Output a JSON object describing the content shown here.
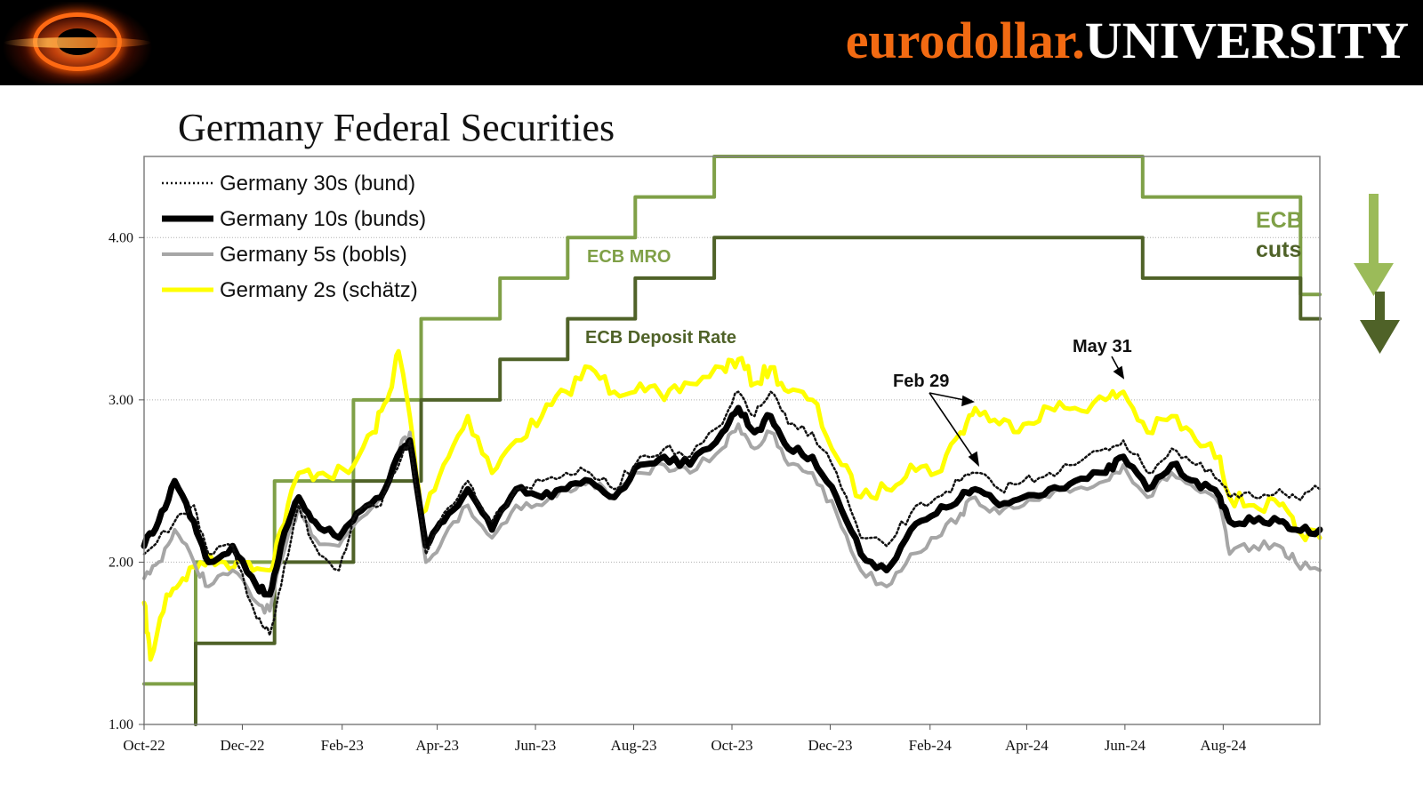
{
  "header": {
    "brand_part1": "eurodollar.",
    "brand_part2": "UNIVERSITY",
    "brand_color_orange": "#f26a12",
    "logo_icon": "black-hole-logo-icon"
  },
  "chart_data": {
    "type": "line",
    "title": "Germany Federal Securities",
    "xlabel": "",
    "ylabel": "",
    "ylim": [
      1.0,
      4.5
    ],
    "yticks": [
      "1.00",
      "2.00",
      "3.00",
      "4.00"
    ],
    "xticks": [
      "Oct-22",
      "Dec-22",
      "Feb-23",
      "Apr-23",
      "Jun-23",
      "Aug-23",
      "Oct-23",
      "Dec-23",
      "Feb-24",
      "Apr-24",
      "Jun-24",
      "Aug-24"
    ],
    "x_start": "2022-10-01",
    "x_end": "2024-09-30",
    "grid": "horizontal dotted",
    "legend_position": "top-left",
    "series": [
      {
        "name": "Germany 30s (bund)",
        "color": "#111111",
        "style": "dotted",
        "points": [
          [
            "2022-10-01",
            2.05
          ],
          [
            "2022-10-20",
            2.25
          ],
          [
            "2022-11-01",
            2.35
          ],
          [
            "2022-11-10",
            2.05
          ],
          [
            "2022-11-25",
            2.1
          ],
          [
            "2022-12-10",
            1.65
          ],
          [
            "2022-12-18",
            1.55
          ],
          [
            "2022-12-25",
            1.85
          ],
          [
            "2023-01-05",
            2.35
          ],
          [
            "2023-01-15",
            2.1
          ],
          [
            "2023-01-30",
            1.95
          ],
          [
            "2023-02-10",
            2.3
          ],
          [
            "2023-02-25",
            2.35
          ],
          [
            "2023-03-10",
            2.65
          ],
          [
            "2023-03-15",
            2.75
          ],
          [
            "2023-03-25",
            2.05
          ],
          [
            "2023-04-05",
            2.3
          ],
          [
            "2023-04-20",
            2.5
          ],
          [
            "2023-05-05",
            2.25
          ],
          [
            "2023-05-20",
            2.45
          ],
          [
            "2023-06-05",
            2.5
          ],
          [
            "2023-06-20",
            2.55
          ],
          [
            "2023-07-05",
            2.55
          ],
          [
            "2023-07-20",
            2.45
          ],
          [
            "2023-08-05",
            2.65
          ],
          [
            "2023-08-20",
            2.7
          ],
          [
            "2023-09-05",
            2.65
          ],
          [
            "2023-09-25",
            2.85
          ],
          [
            "2023-10-05",
            3.05
          ],
          [
            "2023-10-15",
            2.9
          ],
          [
            "2023-10-25",
            3.05
          ],
          [
            "2023-11-05",
            2.85
          ],
          [
            "2023-11-20",
            2.8
          ],
          [
            "2023-12-05",
            2.55
          ],
          [
            "2023-12-20",
            2.15
          ],
          [
            "2024-01-05",
            2.1
          ],
          [
            "2024-01-20",
            2.3
          ],
          [
            "2024-02-05",
            2.4
          ],
          [
            "2024-02-20",
            2.5
          ],
          [
            "2024-02-29",
            2.55
          ],
          [
            "2024-03-15",
            2.45
          ],
          [
            "2024-03-30",
            2.5
          ],
          [
            "2024-04-15",
            2.55
          ],
          [
            "2024-05-01",
            2.6
          ],
          [
            "2024-05-20",
            2.7
          ],
          [
            "2024-05-31",
            2.75
          ],
          [
            "2024-06-15",
            2.55
          ],
          [
            "2024-06-30",
            2.7
          ],
          [
            "2024-07-15",
            2.6
          ],
          [
            "2024-07-30",
            2.5
          ],
          [
            "2024-08-05",
            2.4
          ],
          [
            "2024-08-20",
            2.4
          ],
          [
            "2024-09-05",
            2.45
          ],
          [
            "2024-09-15",
            2.4
          ],
          [
            "2024-09-30",
            2.45
          ]
        ]
      },
      {
        "name": "Germany 10s (bunds)",
        "color": "#000000",
        "style": "solid-thick",
        "points": [
          [
            "2022-10-01",
            2.1
          ],
          [
            "2022-10-10",
            2.25
          ],
          [
            "2022-10-20",
            2.5
          ],
          [
            "2022-11-01",
            2.25
          ],
          [
            "2022-11-10",
            2.0
          ],
          [
            "2022-11-25",
            2.1
          ],
          [
            "2022-12-10",
            1.85
          ],
          [
            "2022-12-18",
            1.8
          ],
          [
            "2022-12-25",
            2.1
          ],
          [
            "2023-01-05",
            2.4
          ],
          [
            "2023-01-15",
            2.25
          ],
          [
            "2023-01-30",
            2.15
          ],
          [
            "2023-02-10",
            2.3
          ],
          [
            "2023-02-25",
            2.4
          ],
          [
            "2023-03-10",
            2.7
          ],
          [
            "2023-03-15",
            2.75
          ],
          [
            "2023-03-25",
            2.1
          ],
          [
            "2023-04-05",
            2.25
          ],
          [
            "2023-04-20",
            2.45
          ],
          [
            "2023-05-05",
            2.2
          ],
          [
            "2023-05-20",
            2.45
          ],
          [
            "2023-06-05",
            2.4
          ],
          [
            "2023-06-20",
            2.45
          ],
          [
            "2023-07-05",
            2.5
          ],
          [
            "2023-07-20",
            2.4
          ],
          [
            "2023-08-05",
            2.6
          ],
          [
            "2023-08-20",
            2.65
          ],
          [
            "2023-09-05",
            2.6
          ],
          [
            "2023-09-25",
            2.8
          ],
          [
            "2023-10-05",
            2.95
          ],
          [
            "2023-10-15",
            2.8
          ],
          [
            "2023-10-25",
            2.9
          ],
          [
            "2023-11-05",
            2.7
          ],
          [
            "2023-11-20",
            2.65
          ],
          [
            "2023-12-05",
            2.4
          ],
          [
            "2023-12-20",
            2.05
          ],
          [
            "2024-01-05",
            1.95
          ],
          [
            "2024-01-20",
            2.2
          ],
          [
            "2024-02-05",
            2.3
          ],
          [
            "2024-02-20",
            2.4
          ],
          [
            "2024-02-29",
            2.45
          ],
          [
            "2024-03-15",
            2.35
          ],
          [
            "2024-03-30",
            2.4
          ],
          [
            "2024-04-15",
            2.45
          ],
          [
            "2024-05-01",
            2.5
          ],
          [
            "2024-05-20",
            2.55
          ],
          [
            "2024-05-31",
            2.65
          ],
          [
            "2024-06-15",
            2.45
          ],
          [
            "2024-06-30",
            2.6
          ],
          [
            "2024-07-15",
            2.5
          ],
          [
            "2024-07-30",
            2.4
          ],
          [
            "2024-08-05",
            2.25
          ],
          [
            "2024-08-20",
            2.25
          ],
          [
            "2024-09-05",
            2.25
          ],
          [
            "2024-09-15",
            2.2
          ],
          [
            "2024-09-30",
            2.2
          ]
        ]
      },
      {
        "name": "Germany 5s (bobls)",
        "color": "#a6a6a6",
        "style": "solid",
        "points": [
          [
            "2022-10-01",
            1.9
          ],
          [
            "2022-10-10",
            2.0
          ],
          [
            "2022-10-20",
            2.2
          ],
          [
            "2022-11-01",
            2.0
          ],
          [
            "2022-11-10",
            1.85
          ],
          [
            "2022-11-25",
            1.95
          ],
          [
            "2022-12-10",
            1.75
          ],
          [
            "2022-12-18",
            1.7
          ],
          [
            "2022-12-25",
            2.0
          ],
          [
            "2023-01-05",
            2.35
          ],
          [
            "2023-01-15",
            2.15
          ],
          [
            "2023-01-30",
            2.1
          ],
          [
            "2023-02-10",
            2.25
          ],
          [
            "2023-02-25",
            2.4
          ],
          [
            "2023-03-10",
            2.75
          ],
          [
            "2023-03-15",
            2.8
          ],
          [
            "2023-03-25",
            2.0
          ],
          [
            "2023-04-05",
            2.15
          ],
          [
            "2023-04-20",
            2.35
          ],
          [
            "2023-05-05",
            2.15
          ],
          [
            "2023-05-20",
            2.35
          ],
          [
            "2023-06-05",
            2.35
          ],
          [
            "2023-06-20",
            2.45
          ],
          [
            "2023-07-05",
            2.5
          ],
          [
            "2023-07-20",
            2.4
          ],
          [
            "2023-08-05",
            2.55
          ],
          [
            "2023-08-20",
            2.6
          ],
          [
            "2023-09-05",
            2.55
          ],
          [
            "2023-09-25",
            2.7
          ],
          [
            "2023-10-05",
            2.85
          ],
          [
            "2023-10-15",
            2.7
          ],
          [
            "2023-10-25",
            2.8
          ],
          [
            "2023-11-05",
            2.6
          ],
          [
            "2023-11-20",
            2.55
          ],
          [
            "2023-12-05",
            2.3
          ],
          [
            "2023-12-20",
            1.95
          ],
          [
            "2024-01-05",
            1.85
          ],
          [
            "2024-01-20",
            2.05
          ],
          [
            "2024-02-05",
            2.15
          ],
          [
            "2024-02-20",
            2.3
          ],
          [
            "2024-02-29",
            2.4
          ],
          [
            "2024-03-15",
            2.3
          ],
          [
            "2024-03-30",
            2.35
          ],
          [
            "2024-04-15",
            2.4
          ],
          [
            "2024-05-01",
            2.45
          ],
          [
            "2024-05-20",
            2.5
          ],
          [
            "2024-05-31",
            2.6
          ],
          [
            "2024-06-15",
            2.4
          ],
          [
            "2024-06-30",
            2.55
          ],
          [
            "2024-07-15",
            2.45
          ],
          [
            "2024-07-30",
            2.35
          ],
          [
            "2024-08-05",
            2.05
          ],
          [
            "2024-08-20",
            2.1
          ],
          [
            "2024-09-05",
            2.1
          ],
          [
            "2024-09-15",
            2.0
          ],
          [
            "2024-09-30",
            1.95
          ]
        ]
      },
      {
        "name": "Germany 2s (schätz)",
        "color": "#ffff00",
        "style": "solid-thick",
        "points": [
          [
            "2022-10-01",
            1.75
          ],
          [
            "2022-10-05",
            1.4
          ],
          [
            "2022-10-15",
            1.8
          ],
          [
            "2022-10-25",
            1.9
          ],
          [
            "2022-11-05",
            2.0
          ],
          [
            "2022-11-20",
            2.0
          ],
          [
            "2022-12-05",
            2.0
          ],
          [
            "2022-12-18",
            1.95
          ],
          [
            "2022-12-25",
            2.2
          ],
          [
            "2023-01-05",
            2.55
          ],
          [
            "2023-01-20",
            2.55
          ],
          [
            "2023-02-05",
            2.55
          ],
          [
            "2023-02-20",
            2.8
          ],
          [
            "2023-03-01",
            3.0
          ],
          [
            "2023-03-08",
            3.3
          ],
          [
            "2023-03-15",
            2.9
          ],
          [
            "2023-03-22",
            2.3
          ],
          [
            "2023-04-05",
            2.6
          ],
          [
            "2023-04-20",
            2.9
          ],
          [
            "2023-05-05",
            2.55
          ],
          [
            "2023-05-20",
            2.75
          ],
          [
            "2023-06-05",
            2.9
          ],
          [
            "2023-06-20",
            3.05
          ],
          [
            "2023-07-05",
            3.2
          ],
          [
            "2023-07-20",
            3.05
          ],
          [
            "2023-08-05",
            3.1
          ],
          [
            "2023-08-20",
            3.0
          ],
          [
            "2023-09-05",
            3.1
          ],
          [
            "2023-09-25",
            3.2
          ],
          [
            "2023-10-05",
            3.25
          ],
          [
            "2023-10-15",
            3.1
          ],
          [
            "2023-10-25",
            3.2
          ],
          [
            "2023-11-05",
            3.05
          ],
          [
            "2023-11-20",
            3.0
          ],
          [
            "2023-12-05",
            2.65
          ],
          [
            "2023-12-20",
            2.4
          ],
          [
            "2024-01-05",
            2.45
          ],
          [
            "2024-01-20",
            2.6
          ],
          [
            "2024-02-05",
            2.55
          ],
          [
            "2024-02-20",
            2.8
          ],
          [
            "2024-02-29",
            2.95
          ],
          [
            "2024-03-15",
            2.85
          ],
          [
            "2024-03-30",
            2.85
          ],
          [
            "2024-04-15",
            2.95
          ],
          [
            "2024-05-01",
            2.95
          ],
          [
            "2024-05-20",
            3.0
          ],
          [
            "2024-05-31",
            3.05
          ],
          [
            "2024-06-15",
            2.8
          ],
          [
            "2024-06-30",
            2.9
          ],
          [
            "2024-07-15",
            2.75
          ],
          [
            "2024-07-30",
            2.65
          ],
          [
            "2024-08-05",
            2.4
          ],
          [
            "2024-08-20",
            2.35
          ],
          [
            "2024-09-05",
            2.35
          ],
          [
            "2024-09-15",
            2.2
          ],
          [
            "2024-09-30",
            2.15
          ]
        ]
      },
      {
        "name": "ECB MRO",
        "color": "#7fa047",
        "style": "step",
        "points": [
          [
            "2022-10-01",
            1.25
          ],
          [
            "2022-11-02",
            1.25
          ],
          [
            "2022-11-02",
            2.0
          ],
          [
            "2022-12-21",
            2.0
          ],
          [
            "2022-12-21",
            2.5
          ],
          [
            "2023-02-08",
            2.5
          ],
          [
            "2023-02-08",
            3.0
          ],
          [
            "2023-03-22",
            3.0
          ],
          [
            "2023-03-22",
            3.5
          ],
          [
            "2023-05-10",
            3.5
          ],
          [
            "2023-05-10",
            3.75
          ],
          [
            "2023-06-21",
            3.75
          ],
          [
            "2023-06-21",
            4.0
          ],
          [
            "2023-08-02",
            4.0
          ],
          [
            "2023-08-02",
            4.25
          ],
          [
            "2023-09-20",
            4.25
          ],
          [
            "2023-09-20",
            4.5
          ],
          [
            "2024-06-12",
            4.5
          ],
          [
            "2024-06-12",
            4.25
          ],
          [
            "2024-09-18",
            4.25
          ],
          [
            "2024-09-18",
            3.65
          ],
          [
            "2024-09-30",
            3.65
          ]
        ]
      },
      {
        "name": "ECB Deposit Rate",
        "color": "#4f6228",
        "style": "step",
        "points": [
          [
            "2022-11-02",
            1.0
          ],
          [
            "2022-11-02",
            1.5
          ],
          [
            "2022-12-21",
            1.5
          ],
          [
            "2022-12-21",
            2.0
          ],
          [
            "2023-02-08",
            2.0
          ],
          [
            "2023-02-08",
            2.5
          ],
          [
            "2023-03-22",
            2.5
          ],
          [
            "2023-03-22",
            3.0
          ],
          [
            "2023-05-10",
            3.0
          ],
          [
            "2023-05-10",
            3.25
          ],
          [
            "2023-06-21",
            3.25
          ],
          [
            "2023-06-21",
            3.5
          ],
          [
            "2023-08-02",
            3.5
          ],
          [
            "2023-08-02",
            3.75
          ],
          [
            "2023-09-20",
            3.75
          ],
          [
            "2023-09-20",
            4.0
          ],
          [
            "2024-06-12",
            4.0
          ],
          [
            "2024-06-12",
            3.75
          ],
          [
            "2024-09-18",
            3.75
          ],
          [
            "2024-09-18",
            3.5
          ],
          [
            "2024-09-30",
            3.5
          ]
        ]
      }
    ],
    "annotations": {
      "ecb_mro_label": "ECB MRO",
      "ecb_deposit_label": "ECB Deposit Rate",
      "ecb_cuts_line1": "ECB",
      "ecb_cuts_line2": "cuts",
      "feb29_label": "Feb 29",
      "may31_label": "May 31"
    }
  }
}
